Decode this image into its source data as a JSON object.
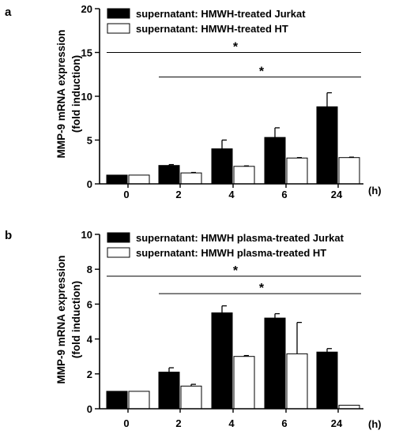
{
  "chart_data": [
    {
      "panel": "a",
      "type": "bar",
      "ylabel_line1": "MMP-9 mRNA expression",
      "ylabel_line2": "(fold induction)",
      "x_unit": "(h)",
      "ylim": [
        0,
        20
      ],
      "yticks": [
        "0",
        "5",
        "10",
        "15",
        "20"
      ],
      "categories": [
        "0",
        "2",
        "4",
        "6",
        "24"
      ],
      "series": [
        {
          "name": "supernatant: HMWH-treated Jurkat",
          "color": "#000000",
          "values": [
            1.0,
            2.1,
            4.0,
            5.3,
            8.8
          ],
          "errors": [
            0.0,
            0.1,
            1.0,
            1.1,
            1.6
          ]
        },
        {
          "name": "supernatant: HMWH-treated HT",
          "color": "#ffffff",
          "values": [
            1.0,
            1.25,
            2.0,
            2.95,
            3.0
          ],
          "errors": [
            0.0,
            0.05,
            0.05,
            0.05,
            0.05
          ]
        }
      ],
      "annotations": [
        {
          "text": "*",
          "from_category": "0",
          "to_category": "24",
          "line_y": 15
        },
        {
          "text": "*",
          "from_category": "2",
          "to_category": "24",
          "line_y": 12.2
        }
      ],
      "grid": false,
      "legend_position": "top-right"
    },
    {
      "panel": "b",
      "type": "bar",
      "ylabel_line1": "MMP-9 mRNA expression",
      "ylabel_line2": "(fold induction)",
      "x_unit": "(h)",
      "ylim": [
        0,
        10
      ],
      "yticks": [
        "0",
        "2",
        "4",
        "6",
        "8",
        "10"
      ],
      "categories": [
        "0",
        "2",
        "4",
        "6",
        "24"
      ],
      "series": [
        {
          "name": "supernatant: HMWH plasma-treated Jurkat",
          "color": "#000000",
          "values": [
            1.0,
            2.1,
            5.5,
            5.2,
            3.25
          ],
          "errors": [
            0.0,
            0.25,
            0.4,
            0.25,
            0.2
          ]
        },
        {
          "name": "supernatant: HMWH plasma-treated HT",
          "color": "#ffffff",
          "values": [
            1.0,
            1.3,
            3.0,
            3.15,
            0.2
          ],
          "errors": [
            0.0,
            0.1,
            0.05,
            1.8,
            0.0
          ]
        }
      ],
      "annotations": [
        {
          "text": "*",
          "from_category": "0",
          "to_category": "24",
          "line_y": 7.6
        },
        {
          "text": "*",
          "from_category": "2",
          "to_category": "24",
          "line_y": 6.6
        }
      ],
      "grid": false,
      "legend_position": "top-right"
    }
  ]
}
